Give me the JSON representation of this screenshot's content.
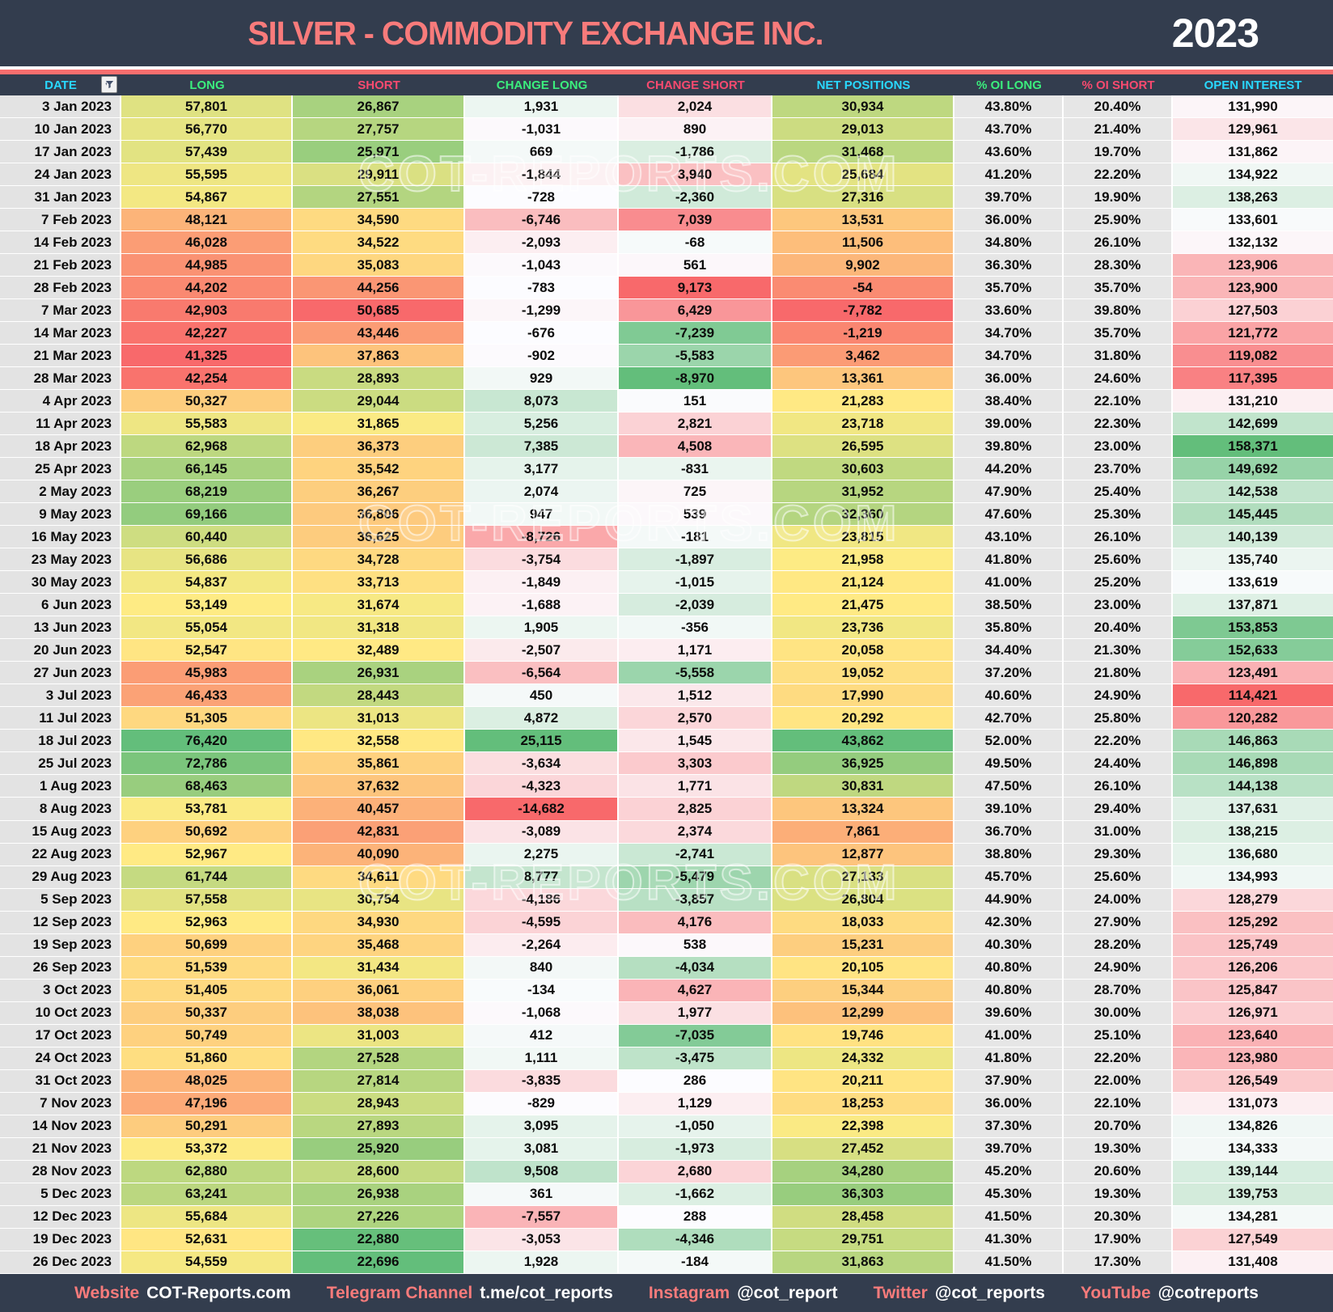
{
  "header": {
    "title": "SILVER - COMMODITY EXCHANGE INC.",
    "year": "2023"
  },
  "watermark": "COT-REPORTS.COM",
  "chart_data": {
    "type": "table",
    "title": "SILVER - COMMODITY EXCHANGE INC. COT report 2023, weekly positions heatmap",
    "columns": [
      "DATE",
      "LONG",
      "SHORT",
      "CHANGE LONG",
      "CHANGE SHORT",
      "NET POSITIONS",
      "% OI LONG",
      "% OI SHORT",
      "OPEN INTEREST"
    ],
    "heatmap_colors": {
      "low": "#F8696B",
      "mid_yellow": "#FFEB84",
      "mid_white": "#FCFCFF",
      "high": "#63BE7B"
    },
    "rows": [
      [
        "3 Jan 2023",
        "57,801",
        "26,867",
        "1,931",
        "2,024",
        "30,934",
        "43.80%",
        "20.40%",
        "131,990"
      ],
      [
        "10 Jan 2023",
        "56,770",
        "27,757",
        "-1,031",
        "890",
        "29,013",
        "43.70%",
        "21.40%",
        "129,961"
      ],
      [
        "17 Jan 2023",
        "57,439",
        "25,971",
        "669",
        "-1,786",
        "31,468",
        "43.60%",
        "19.70%",
        "131,862"
      ],
      [
        "24 Jan 2023",
        "55,595",
        "29,911",
        "-1,844",
        "3,940",
        "25,684",
        "41.20%",
        "22.20%",
        "134,922"
      ],
      [
        "31 Jan 2023",
        "54,867",
        "27,551",
        "-728",
        "-2,360",
        "27,316",
        "39.70%",
        "19.90%",
        "138,263"
      ],
      [
        "7 Feb 2023",
        "48,121",
        "34,590",
        "-6,746",
        "7,039",
        "13,531",
        "36.00%",
        "25.90%",
        "133,601"
      ],
      [
        "14 Feb 2023",
        "46,028",
        "34,522",
        "-2,093",
        "-68",
        "11,506",
        "34.80%",
        "26.10%",
        "132,132"
      ],
      [
        "21 Feb 2023",
        "44,985",
        "35,083",
        "-1,043",
        "561",
        "9,902",
        "36.30%",
        "28.30%",
        "123,906"
      ],
      [
        "28 Feb 2023",
        "44,202",
        "44,256",
        "-783",
        "9,173",
        "-54",
        "35.70%",
        "35.70%",
        "123,900"
      ],
      [
        "7 Mar 2023",
        "42,903",
        "50,685",
        "-1,299",
        "6,429",
        "-7,782",
        "33.60%",
        "39.80%",
        "127,503"
      ],
      [
        "14 Mar 2023",
        "42,227",
        "43,446",
        "-676",
        "-7,239",
        "-1,219",
        "34.70%",
        "35.70%",
        "121,772"
      ],
      [
        "21 Mar 2023",
        "41,325",
        "37,863",
        "-902",
        "-5,583",
        "3,462",
        "34.70%",
        "31.80%",
        "119,082"
      ],
      [
        "28 Mar 2023",
        "42,254",
        "28,893",
        "929",
        "-8,970",
        "13,361",
        "36.00%",
        "24.60%",
        "117,395"
      ],
      [
        "4 Apr 2023",
        "50,327",
        "29,044",
        "8,073",
        "151",
        "21,283",
        "38.40%",
        "22.10%",
        "131,210"
      ],
      [
        "11 Apr 2023",
        "55,583",
        "31,865",
        "5,256",
        "2,821",
        "23,718",
        "39.00%",
        "22.30%",
        "142,699"
      ],
      [
        "18 Apr 2023",
        "62,968",
        "36,373",
        "7,385",
        "4,508",
        "26,595",
        "39.80%",
        "23.00%",
        "158,371"
      ],
      [
        "25 Apr 2023",
        "66,145",
        "35,542",
        "3,177",
        "-831",
        "30,603",
        "44.20%",
        "23.70%",
        "149,692"
      ],
      [
        "2 May 2023",
        "68,219",
        "36,267",
        "2,074",
        "725",
        "31,952",
        "47.90%",
        "25.40%",
        "142,538"
      ],
      [
        "9 May 2023",
        "69,166",
        "36,806",
        "947",
        "539",
        "32,360",
        "47.60%",
        "25.30%",
        "145,445"
      ],
      [
        "16 May 2023",
        "60,440",
        "36,625",
        "-8,726",
        "-181",
        "23,815",
        "43.10%",
        "26.10%",
        "140,139"
      ],
      [
        "23 May 2023",
        "56,686",
        "34,728",
        "-3,754",
        "-1,897",
        "21,958",
        "41.80%",
        "25.60%",
        "135,740"
      ],
      [
        "30 May 2023",
        "54,837",
        "33,713",
        "-1,849",
        "-1,015",
        "21,124",
        "41.00%",
        "25.20%",
        "133,619"
      ],
      [
        "6 Jun 2023",
        "53,149",
        "31,674",
        "-1,688",
        "-2,039",
        "21,475",
        "38.50%",
        "23.00%",
        "137,871"
      ],
      [
        "13 Jun 2023",
        "55,054",
        "31,318",
        "1,905",
        "-356",
        "23,736",
        "35.80%",
        "20.40%",
        "153,853"
      ],
      [
        "20 Jun 2023",
        "52,547",
        "32,489",
        "-2,507",
        "1,171",
        "20,058",
        "34.40%",
        "21.30%",
        "152,633"
      ],
      [
        "27 Jun 2023",
        "45,983",
        "26,931",
        "-6,564",
        "-5,558",
        "19,052",
        "37.20%",
        "21.80%",
        "123,491"
      ],
      [
        "3 Jul 2023",
        "46,433",
        "28,443",
        "450",
        "1,512",
        "17,990",
        "40.60%",
        "24.90%",
        "114,421"
      ],
      [
        "11 Jul 2023",
        "51,305",
        "31,013",
        "4,872",
        "2,570",
        "20,292",
        "42.70%",
        "25.80%",
        "120,282"
      ],
      [
        "18 Jul 2023",
        "76,420",
        "32,558",
        "25,115",
        "1,545",
        "43,862",
        "52.00%",
        "22.20%",
        "146,863"
      ],
      [
        "25 Jul 2023",
        "72,786",
        "35,861",
        "-3,634",
        "3,303",
        "36,925",
        "49.50%",
        "24.40%",
        "146,898"
      ],
      [
        "1 Aug 2023",
        "68,463",
        "37,632",
        "-4,323",
        "1,771",
        "30,831",
        "47.50%",
        "26.10%",
        "144,138"
      ],
      [
        "8 Aug 2023",
        "53,781",
        "40,457",
        "-14,682",
        "2,825",
        "13,324",
        "39.10%",
        "29.40%",
        "137,631"
      ],
      [
        "15 Aug 2023",
        "50,692",
        "42,831",
        "-3,089",
        "2,374",
        "7,861",
        "36.70%",
        "31.00%",
        "138,215"
      ],
      [
        "22 Aug 2023",
        "52,967",
        "40,090",
        "2,275",
        "-2,741",
        "12,877",
        "38.80%",
        "29.30%",
        "136,680"
      ],
      [
        "29 Aug 2023",
        "61,744",
        "34,611",
        "8,777",
        "-5,479",
        "27,133",
        "45.70%",
        "25.60%",
        "134,993"
      ],
      [
        "5 Sep 2023",
        "57,558",
        "30,754",
        "-4,186",
        "-3,857",
        "26,804",
        "44.90%",
        "24.00%",
        "128,279"
      ],
      [
        "12 Sep 2023",
        "52,963",
        "34,930",
        "-4,595",
        "4,176",
        "18,033",
        "42.30%",
        "27.90%",
        "125,292"
      ],
      [
        "19 Sep 2023",
        "50,699",
        "35,468",
        "-2,264",
        "538",
        "15,231",
        "40.30%",
        "28.20%",
        "125,749"
      ],
      [
        "26 Sep 2023",
        "51,539",
        "31,434",
        "840",
        "-4,034",
        "20,105",
        "40.80%",
        "24.90%",
        "126,206"
      ],
      [
        "3 Oct 2023",
        "51,405",
        "36,061",
        "-134",
        "4,627",
        "15,344",
        "40.80%",
        "28.70%",
        "125,847"
      ],
      [
        "10 Oct 2023",
        "50,337",
        "38,038",
        "-1,068",
        "1,977",
        "12,299",
        "39.60%",
        "30.00%",
        "126,971"
      ],
      [
        "17 Oct 2023",
        "50,749",
        "31,003",
        "412",
        "-7,035",
        "19,746",
        "41.00%",
        "25.10%",
        "123,640"
      ],
      [
        "24 Oct 2023",
        "51,860",
        "27,528",
        "1,111",
        "-3,475",
        "24,332",
        "41.80%",
        "22.20%",
        "123,980"
      ],
      [
        "31 Oct 2023",
        "48,025",
        "27,814",
        "-3,835",
        "286",
        "20,211",
        "37.90%",
        "22.00%",
        "126,549"
      ],
      [
        "7 Nov 2023",
        "47,196",
        "28,943",
        "-829",
        "1,129",
        "18,253",
        "36.00%",
        "22.10%",
        "131,073"
      ],
      [
        "14 Nov 2023",
        "50,291",
        "27,893",
        "3,095",
        "-1,050",
        "22,398",
        "37.30%",
        "20.70%",
        "134,826"
      ],
      [
        "21 Nov 2023",
        "53,372",
        "25,920",
        "3,081",
        "-1,973",
        "27,452",
        "39.70%",
        "19.30%",
        "134,333"
      ],
      [
        "28 Nov 2023",
        "62,880",
        "28,600",
        "9,508",
        "2,680",
        "34,280",
        "45.20%",
        "20.60%",
        "139,144"
      ],
      [
        "5 Dec 2023",
        "63,241",
        "26,938",
        "361",
        "-1,662",
        "36,303",
        "45.30%",
        "19.30%",
        "139,753"
      ],
      [
        "12 Dec 2023",
        "55,684",
        "27,226",
        "-7,557",
        "288",
        "28,458",
        "41.50%",
        "20.30%",
        "134,281"
      ],
      [
        "19 Dec 2023",
        "52,631",
        "22,880",
        "-3,053",
        "-4,346",
        "29,751",
        "41.30%",
        "17.90%",
        "127,549"
      ],
      [
        "26 Dec 2023",
        "54,559",
        "22,696",
        "1,928",
        "-184",
        "31,863",
        "41.50%",
        "17.30%",
        "131,408"
      ]
    ]
  },
  "footer": {
    "items": [
      {
        "label": "Website",
        "value": "COT-Reports.com"
      },
      {
        "label": "Telegram Channel",
        "value": "t.me/cot_reports"
      },
      {
        "label": "Instagram",
        "value": "@cot_report"
      },
      {
        "label": "Twitter",
        "value": "@cot_reports"
      },
      {
        "label": "YouTube",
        "value": "@cotreports"
      }
    ]
  }
}
